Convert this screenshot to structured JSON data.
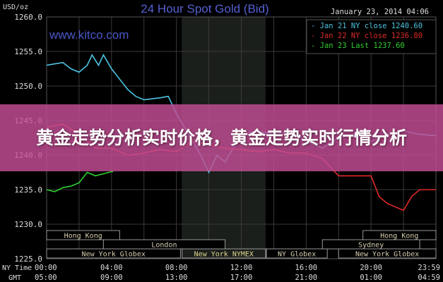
{
  "chart_data": {
    "type": "line",
    "title": "24 Hour Spot Gold (Bid)",
    "watermark": "www.kitco.com",
    "timestamp": "January 23, 2014 04:06",
    "ylabel": "USD/oz",
    "ylim": [
      1225,
      1260
    ],
    "yticks": [
      "1260.0",
      "1255.0",
      "1250.0",
      "1245.0",
      "1240.0",
      "1235.0",
      "1230.0",
      "1225.0"
    ],
    "xlim": [
      0,
      24
    ],
    "x_row_labels": [
      "NY Time",
      "GMT"
    ],
    "xticks_ny": [
      "00:00",
      "04:00",
      "08:00",
      "12:00",
      "16:00",
      "20:00",
      "23:59"
    ],
    "xticks_gmt": [
      "05:00",
      "09:00",
      "13:00",
      "17:00",
      "21:00",
      "01:00",
      "04:59"
    ],
    "grid": true,
    "legend_placement": "top-right",
    "series": [
      {
        "name": "Jan 21 NY close 1240.60",
        "color": "#4cc3e0",
        "x": [
          0,
          0.5,
          1,
          1.5,
          2,
          2.5,
          2.8,
          3.2,
          3.5,
          4,
          4.5,
          5,
          5.5,
          6,
          7,
          7.5,
          8,
          9,
          9.5,
          10,
          10.5,
          11,
          12,
          13,
          14,
          15,
          16,
          17,
          18,
          19,
          20,
          21,
          22,
          23,
          24
        ],
        "y": [
          1253,
          1253.2,
          1253.4,
          1252.5,
          1252,
          1253,
          1254.5,
          1253,
          1254.5,
          1252.5,
          1251,
          1249.5,
          1248.5,
          1248,
          1248.3,
          1248.5,
          1246,
          1242,
          1240,
          1237.5,
          1240,
          1239,
          1243,
          1243.5,
          1243,
          1243.5,
          1242,
          1241,
          1242.5,
          1243,
          1242,
          1243,
          1243.5,
          1243,
          1242.8
        ]
      },
      {
        "name": "Jan 22 NY close 1236.80",
        "color": "#e02a2a",
        "x": [
          0,
          1,
          2,
          3,
          4,
          5,
          6,
          7,
          8,
          9,
          10,
          11,
          12,
          13,
          14,
          15,
          16,
          17,
          18,
          19,
          20,
          20.5,
          21,
          22,
          22.5,
          23,
          24
        ],
        "y": [
          1244,
          1244.5,
          1243,
          1241,
          1241,
          1240,
          1240.3,
          1240.8,
          1240.5,
          1242,
          1241.5,
          1241,
          1240.8,
          1240.5,
          1240.8,
          1240.3,
          1240.3,
          1239.5,
          1237,
          1237,
          1237,
          1234,
          1233,
          1232,
          1234,
          1235,
          1235
        ]
      },
      {
        "name": "Jan 23 Last 1237.60",
        "color": "#30d030",
        "x": [
          0,
          0.5,
          1,
          1.5,
          2,
          2.5,
          3,
          3.5,
          4,
          4.1
        ],
        "y": [
          1235,
          1234.7,
          1235.3,
          1235.5,
          1236,
          1237.5,
          1237,
          1237.3,
          1237.6,
          1237.6
        ]
      }
    ],
    "shaded_region": {
      "label": "New York NYMEX",
      "x": [
        8.33,
        13.5
      ]
    },
    "sessions": [
      {
        "label": "Hong Kong",
        "row": 1,
        "x": [
          0,
          4.5
        ]
      },
      {
        "label": "Hong Kong",
        "row": 1,
        "x": [
          19.5,
          24
        ]
      },
      {
        "label": "London",
        "row": 2,
        "x": [
          3.5,
          11
        ]
      },
      {
        "label": "Sydney",
        "row": 2,
        "x": [
          17,
          23
        ]
      },
      {
        "label": "New York Globex",
        "row": 3,
        "x": [
          0,
          8.25
        ]
      },
      {
        "label": "New York NYMEX",
        "row": 3,
        "x": [
          8.35,
          13.5
        ]
      },
      {
        "label": "NY Globex",
        "row": 3,
        "x": [
          13.55,
          17.3
        ]
      },
      {
        "label": "New York Globex",
        "row": 3,
        "x": [
          18,
          24
        ]
      }
    ]
  },
  "overlay": {
    "title": "黄金走势分析实时价格，黄金走势实时行情分析"
  }
}
